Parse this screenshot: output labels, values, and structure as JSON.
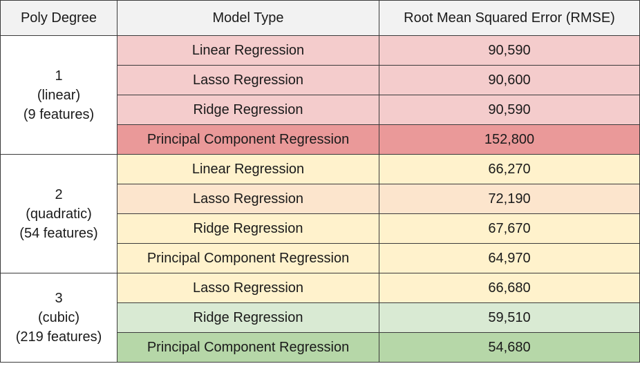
{
  "headers": [
    "Poly Degree",
    "Model Type",
    "Root Mean Squared Error (RMSE)"
  ],
  "groups": [
    {
      "degree": "1",
      "kind": "(linear)",
      "features": "(9 features)",
      "rows": [
        {
          "model": "Linear Regression",
          "rmse": "90,590",
          "color": "#f4cccc"
        },
        {
          "model": "Lasso Regression",
          "rmse": "90,600",
          "color": "#f4cccc"
        },
        {
          "model": "Ridge Regression",
          "rmse": "90,590",
          "color": "#f4cccc"
        },
        {
          "model": "Principal Component Regression",
          "rmse": "152,800",
          "color": "#ea9999"
        }
      ]
    },
    {
      "degree": "2",
      "kind": "(quadratic)",
      "features": "(54 features)",
      "rows": [
        {
          "model": "Linear Regression",
          "rmse": "66,270",
          "color": "#fff2cc"
        },
        {
          "model": "Lasso Regression",
          "rmse": "72,190",
          "color": "#fce5cd"
        },
        {
          "model": "Ridge Regression",
          "rmse": "67,670",
          "color": "#fff2cc"
        },
        {
          "model": "Principal Component Regression",
          "rmse": "64,970",
          "color": "#fff2cc"
        }
      ]
    },
    {
      "degree": "3",
      "kind": "(cubic)",
      "features": "(219 features)",
      "rows": [
        {
          "model": "Lasso Regression",
          "rmse": "66,680",
          "color": "#fff2cc"
        },
        {
          "model": "Ridge Regression",
          "rmse": "59,510",
          "color": "#d9ead3"
        },
        {
          "model": "Principal Component Regression",
          "rmse": "54,680",
          "color": "#b6d7a8"
        }
      ]
    }
  ]
}
